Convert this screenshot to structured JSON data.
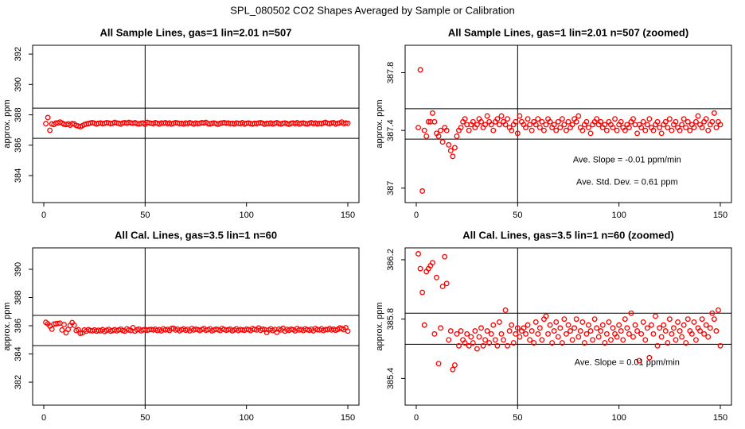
{
  "title": "SPL_080502  CO2 Shapes Averaged by Sample or Calibration",
  "chart_data": [
    {
      "type": "scatter",
      "title": "All Sample Lines, gas=1 lin=2.01 n=507",
      "y_label": "approx. ppm",
      "color": "#ff0000",
      "xlim": [
        -5.5,
        155.5
      ],
      "xticks": [
        0,
        50,
        100,
        150
      ],
      "ylim": [
        382.22,
        392.58
      ],
      "yticks": [
        384,
        386,
        388,
        390,
        392
      ],
      "hlines": [
        388.44,
        386.45
      ],
      "vlines": [
        50
      ],
      "annotations": [],
      "x": [
        1,
        2,
        3,
        4,
        5,
        6,
        7,
        8,
        9,
        10,
        11,
        12,
        13,
        14,
        15,
        16,
        17,
        18,
        19,
        20,
        21,
        22,
        23,
        24,
        25,
        26,
        27,
        28,
        29,
        30,
        31,
        32,
        33,
        34,
        35,
        36,
        37,
        38,
        39,
        40,
        41,
        42,
        43,
        44,
        45,
        46,
        47,
        48,
        49,
        50,
        51,
        52,
        53,
        54,
        55,
        56,
        57,
        58,
        59,
        60,
        61,
        62,
        63,
        64,
        65,
        66,
        67,
        68,
        69,
        70,
        71,
        72,
        73,
        74,
        75,
        76,
        77,
        78,
        79,
        80,
        81,
        82,
        83,
        84,
        85,
        86,
        87,
        88,
        89,
        90,
        91,
        92,
        93,
        94,
        95,
        96,
        97,
        98,
        99,
        100,
        101,
        102,
        103,
        104,
        105,
        106,
        107,
        108,
        109,
        110,
        111,
        112,
        113,
        114,
        115,
        116,
        117,
        118,
        119,
        120,
        121,
        122,
        123,
        124,
        125,
        126,
        127,
        128,
        129,
        130,
        131,
        132,
        133,
        134,
        135,
        136,
        137,
        138,
        139,
        140,
        141,
        142,
        143,
        144,
        145,
        146,
        147,
        148,
        149,
        150
      ],
      "values": [
        387.42,
        387.82,
        386.98,
        387.4,
        387.36,
        387.46,
        387.46,
        387.52,
        387.46,
        387.38,
        387.36,
        387.4,
        387.32,
        387.42,
        387.4,
        387.3,
        387.26,
        387.22,
        387.28,
        387.36,
        387.4,
        387.42,
        387.46,
        387.48,
        387.44,
        387.4,
        387.44,
        387.46,
        387.42,
        387.44,
        387.48,
        387.46,
        387.42,
        387.44,
        387.5,
        387.46,
        387.44,
        387.4,
        387.46,
        387.48,
        387.44,
        387.5,
        387.46,
        387.44,
        387.48,
        387.42,
        387.4,
        387.44,
        387.46,
        387.38,
        387.5,
        387.46,
        387.44,
        387.42,
        387.48,
        387.44,
        387.4,
        387.46,
        387.44,
        387.48,
        387.42,
        387.46,
        387.4,
        387.44,
        387.48,
        387.46,
        387.42,
        387.44,
        387.4,
        387.46,
        387.42,
        387.48,
        387.44,
        387.4,
        387.46,
        387.42,
        387.44,
        387.48,
        387.46,
        387.5,
        387.42,
        387.4,
        387.44,
        387.46,
        387.42,
        387.38,
        387.44,
        387.46,
        387.48,
        387.44,
        387.46,
        387.42,
        387.44,
        387.4,
        387.46,
        387.44,
        387.42,
        387.48,
        387.4,
        387.44,
        387.46,
        387.42,
        387.4,
        387.44,
        387.42,
        387.46,
        387.48,
        387.44,
        387.38,
        387.44,
        387.42,
        387.46,
        387.4,
        387.44,
        387.48,
        387.42,
        387.4,
        387.44,
        387.46,
        387.42,
        387.38,
        387.44,
        387.46,
        387.42,
        387.48,
        387.4,
        387.44,
        387.46,
        387.42,
        387.4,
        387.44,
        387.48,
        387.42,
        387.46,
        387.4,
        387.44,
        387.42,
        387.46,
        387.5,
        387.44,
        387.42,
        387.46,
        387.48,
        387.4,
        387.44,
        387.46,
        387.52,
        387.42,
        387.46,
        387.44
      ]
    },
    {
      "type": "scatter",
      "title": "All Sample Lines, gas=1 lin=2.01 n=507 (zoomed)",
      "y_label": "approx. ppm",
      "color": "#ff0000",
      "xlim": [
        -5.5,
        155.5
      ],
      "xticks": [
        0,
        50,
        100,
        150
      ],
      "ylim": [
        386.9,
        387.99
      ],
      "yticks": [
        387.0,
        387.4,
        387.8
      ],
      "hlines": [
        387.55,
        387.34
      ],
      "vlines": [
        50
      ],
      "annotations": [
        "Ave. Slope = -0.01  ppm/min",
        "Ave. Std. Dev. = 0.61  ppm"
      ],
      "x": [
        1,
        2,
        3,
        4,
        5,
        6,
        7,
        8,
        9,
        10,
        11,
        12,
        13,
        14,
        15,
        16,
        17,
        18,
        19,
        20,
        21,
        22,
        23,
        24,
        25,
        26,
        27,
        28,
        29,
        30,
        31,
        32,
        33,
        34,
        35,
        36,
        37,
        38,
        39,
        40,
        41,
        42,
        43,
        44,
        45,
        46,
        47,
        48,
        49,
        50,
        51,
        52,
        53,
        54,
        55,
        56,
        57,
        58,
        59,
        60,
        61,
        62,
        63,
        64,
        65,
        66,
        67,
        68,
        69,
        70,
        71,
        72,
        73,
        74,
        75,
        76,
        77,
        78,
        79,
        80,
        81,
        82,
        83,
        84,
        85,
        86,
        87,
        88,
        89,
        90,
        91,
        92,
        93,
        94,
        95,
        96,
        97,
        98,
        99,
        100,
        101,
        102,
        103,
        104,
        105,
        106,
        107,
        108,
        109,
        110,
        111,
        112,
        113,
        114,
        115,
        116,
        117,
        118,
        119,
        120,
        121,
        122,
        123,
        124,
        125,
        126,
        127,
        128,
        129,
        130,
        131,
        132,
        133,
        134,
        135,
        136,
        137,
        138,
        139,
        140,
        141,
        142,
        143,
        144,
        145,
        146,
        147,
        148,
        149,
        150
      ],
      "values": [
        387.42,
        387.82,
        386.98,
        387.4,
        387.36,
        387.46,
        387.46,
        387.52,
        387.46,
        387.38,
        387.36,
        387.4,
        387.32,
        387.42,
        387.4,
        387.3,
        387.26,
        387.22,
        387.28,
        387.36,
        387.4,
        387.42,
        387.46,
        387.48,
        387.44,
        387.4,
        387.44,
        387.46,
        387.42,
        387.44,
        387.48,
        387.46,
        387.42,
        387.44,
        387.5,
        387.46,
        387.44,
        387.4,
        387.46,
        387.48,
        387.44,
        387.5,
        387.46,
        387.44,
        387.48,
        387.42,
        387.4,
        387.44,
        387.46,
        387.38,
        387.5,
        387.46,
        387.44,
        387.42,
        387.48,
        387.44,
        387.4,
        387.46,
        387.44,
        387.48,
        387.42,
        387.46,
        387.4,
        387.44,
        387.48,
        387.46,
        387.42,
        387.44,
        387.4,
        387.46,
        387.42,
        387.48,
        387.44,
        387.4,
        387.46,
        387.42,
        387.44,
        387.48,
        387.46,
        387.5,
        387.42,
        387.4,
        387.44,
        387.46,
        387.42,
        387.38,
        387.44,
        387.46,
        387.48,
        387.44,
        387.46,
        387.42,
        387.44,
        387.4,
        387.46,
        387.44,
        387.42,
        387.48,
        387.4,
        387.44,
        387.46,
        387.42,
        387.4,
        387.44,
        387.42,
        387.46,
        387.48,
        387.44,
        387.38,
        387.44,
        387.42,
        387.46,
        387.4,
        387.44,
        387.48,
        387.42,
        387.4,
        387.44,
        387.46,
        387.42,
        387.38,
        387.44,
        387.46,
        387.42,
        387.48,
        387.4,
        387.44,
        387.46,
        387.42,
        387.4,
        387.44,
        387.48,
        387.42,
        387.46,
        387.4,
        387.44,
        387.42,
        387.46,
        387.5,
        387.44,
        387.42,
        387.46,
        387.48,
        387.4,
        387.44,
        387.46,
        387.52,
        387.42,
        387.46,
        387.44
      ]
    },
    {
      "type": "scatter",
      "title": "All Cal. Lines, gas=3.5 lin=1 n=60",
      "y_label": "approx. ppm",
      "color": "#ff0000",
      "xlim": [
        -5.5,
        155.5
      ],
      "xticks": [
        0,
        50,
        100,
        150
      ],
      "ylim": [
        380.37,
        391.52
      ],
      "yticks": [
        382,
        384,
        386,
        388,
        390
      ],
      "hlines": [
        386.73,
        384.59
      ],
      "vlines": [
        50
      ],
      "annotations": [],
      "x": [
        1,
        2,
        3,
        4,
        5,
        6,
        7,
        8,
        9,
        10,
        11,
        12,
        13,
        14,
        15,
        16,
        17,
        18,
        19,
        20,
        21,
        22,
        23,
        24,
        25,
        26,
        27,
        28,
        29,
        30,
        31,
        32,
        33,
        34,
        35,
        36,
        37,
        38,
        39,
        40,
        41,
        42,
        43,
        44,
        45,
        46,
        47,
        48,
        49,
        50,
        51,
        52,
        53,
        54,
        55,
        56,
        57,
        58,
        59,
        60,
        61,
        62,
        63,
        64,
        65,
        66,
        67,
        68,
        69,
        70,
        71,
        72,
        73,
        74,
        75,
        76,
        77,
        78,
        79,
        80,
        81,
        82,
        83,
        84,
        85,
        86,
        87,
        88,
        89,
        90,
        91,
        92,
        93,
        94,
        95,
        96,
        97,
        98,
        99,
        100,
        101,
        102,
        103,
        104,
        105,
        106,
        107,
        108,
        109,
        110,
        111,
        112,
        113,
        114,
        115,
        116,
        117,
        118,
        119,
        120,
        121,
        122,
        123,
        124,
        125,
        126,
        127,
        128,
        129,
        130,
        131,
        132,
        133,
        134,
        135,
        136,
        137,
        138,
        139,
        140,
        141,
        142,
        143,
        144,
        145,
        146,
        147,
        148,
        149,
        150
      ],
      "values": [
        386.24,
        386.14,
        385.98,
        385.76,
        386.12,
        386.14,
        386.16,
        386.18,
        385.7,
        386.08,
        385.5,
        385.74,
        386.02,
        386.22,
        386.04,
        385.66,
        385.72,
        385.46,
        385.49,
        385.7,
        385.62,
        385.72,
        385.66,
        385.64,
        385.7,
        385.62,
        385.68,
        385.64,
        385.72,
        385.6,
        385.68,
        385.74,
        385.62,
        385.66,
        385.72,
        385.64,
        385.7,
        385.76,
        385.66,
        385.62,
        385.78,
        385.7,
        385.66,
        385.86,
        385.62,
        385.72,
        385.76,
        385.64,
        385.7,
        385.74,
        385.68,
        385.72,
        385.74,
        385.7,
        385.76,
        385.66,
        385.72,
        385.64,
        385.78,
        385.7,
        385.74,
        385.66,
        385.8,
        385.82,
        385.7,
        385.76,
        385.64,
        385.72,
        385.78,
        385.68,
        385.74,
        385.64,
        385.8,
        385.7,
        385.76,
        385.72,
        385.66,
        385.74,
        385.8,
        385.68,
        385.72,
        385.78,
        385.64,
        385.7,
        385.76,
        385.72,
        385.66,
        385.8,
        385.74,
        385.68,
        385.72,
        385.76,
        385.64,
        385.7,
        385.78,
        385.66,
        385.74,
        385.7,
        385.68,
        385.76,
        385.72,
        385.66,
        385.8,
        385.74,
        385.7,
        385.84,
        385.68,
        385.76,
        385.72,
        385.52,
        385.7,
        385.78,
        385.66,
        385.74,
        385.54,
        385.76,
        385.7,
        385.82,
        385.62,
        385.74,
        385.68,
        385.76,
        385.72,
        385.64,
        385.8,
        385.7,
        385.74,
        385.66,
        385.78,
        385.72,
        385.68,
        385.76,
        385.64,
        385.8,
        385.72,
        385.7,
        385.78,
        385.66,
        385.74,
        385.72,
        385.8,
        385.7,
        385.76,
        385.68,
        385.74,
        385.84,
        385.8,
        385.72,
        385.86,
        385.62
      ]
    },
    {
      "type": "scatter",
      "title": "All Cal. Lines, gas=3.5 lin=1 n=60 (zoomed)",
      "y_label": "approx. ppm",
      "color": "#ff0000",
      "xlim": [
        -5.5,
        155.5
      ],
      "xticks": [
        0,
        50,
        100,
        150
      ],
      "ylim": [
        385.22,
        386.28
      ],
      "yticks": [
        385.4,
        385.8,
        386.2
      ],
      "hlines": [
        385.84,
        385.63
      ],
      "vlines": [
        50
      ],
      "annotations": [
        "Ave. Slope = 0.01  ppm/min"
      ],
      "x": [
        1,
        2,
        3,
        4,
        5,
        6,
        7,
        8,
        9,
        10,
        11,
        12,
        13,
        14,
        15,
        16,
        17,
        18,
        19,
        20,
        21,
        22,
        23,
        24,
        25,
        26,
        27,
        28,
        29,
        30,
        31,
        32,
        33,
        34,
        35,
        36,
        37,
        38,
        39,
        40,
        41,
        42,
        43,
        44,
        45,
        46,
        47,
        48,
        49,
        50,
        51,
        52,
        53,
        54,
        55,
        56,
        57,
        58,
        59,
        60,
        61,
        62,
        63,
        64,
        65,
        66,
        67,
        68,
        69,
        70,
        71,
        72,
        73,
        74,
        75,
        76,
        77,
        78,
        79,
        80,
        81,
        82,
        83,
        84,
        85,
        86,
        87,
        88,
        89,
        90,
        91,
        92,
        93,
        94,
        95,
        96,
        97,
        98,
        99,
        100,
        101,
        102,
        103,
        104,
        105,
        106,
        107,
        108,
        109,
        110,
        111,
        112,
        113,
        114,
        115,
        116,
        117,
        118,
        119,
        120,
        121,
        122,
        123,
        124,
        125,
        126,
        127,
        128,
        129,
        130,
        131,
        132,
        133,
        134,
        135,
        136,
        137,
        138,
        139,
        140,
        141,
        142,
        143,
        144,
        145,
        146,
        147,
        148,
        149,
        150
      ],
      "values": [
        386.24,
        386.14,
        385.98,
        385.76,
        386.12,
        386.14,
        386.16,
        386.18,
        385.7,
        386.08,
        385.5,
        385.74,
        386.02,
        386.22,
        386.04,
        385.66,
        385.72,
        385.46,
        385.49,
        385.7,
        385.62,
        385.72,
        385.66,
        385.64,
        385.7,
        385.62,
        385.68,
        385.64,
        385.72,
        385.6,
        385.68,
        385.74,
        385.62,
        385.66,
        385.72,
        385.64,
        385.7,
        385.76,
        385.66,
        385.62,
        385.78,
        385.7,
        385.66,
        385.86,
        385.62,
        385.72,
        385.76,
        385.64,
        385.7,
        385.74,
        385.68,
        385.72,
        385.74,
        385.7,
        385.76,
        385.66,
        385.72,
        385.64,
        385.78,
        385.7,
        385.74,
        385.66,
        385.8,
        385.82,
        385.7,
        385.76,
        385.64,
        385.72,
        385.78,
        385.68,
        385.74,
        385.64,
        385.8,
        385.7,
        385.76,
        385.72,
        385.66,
        385.74,
        385.8,
        385.68,
        385.72,
        385.78,
        385.64,
        385.7,
        385.76,
        385.72,
        385.66,
        385.8,
        385.74,
        385.68,
        385.72,
        385.76,
        385.64,
        385.7,
        385.78,
        385.66,
        385.74,
        385.7,
        385.68,
        385.76,
        385.72,
        385.66,
        385.8,
        385.74,
        385.7,
        385.84,
        385.68,
        385.76,
        385.72,
        385.52,
        385.7,
        385.78,
        385.66,
        385.74,
        385.54,
        385.76,
        385.7,
        385.82,
        385.62,
        385.74,
        385.68,
        385.76,
        385.72,
        385.64,
        385.8,
        385.7,
        385.74,
        385.66,
        385.78,
        385.72,
        385.68,
        385.76,
        385.64,
        385.8,
        385.72,
        385.7,
        385.78,
        385.66,
        385.74,
        385.72,
        385.8,
        385.7,
        385.76,
        385.68,
        385.74,
        385.84,
        385.8,
        385.72,
        385.86,
        385.62
      ]
    }
  ]
}
